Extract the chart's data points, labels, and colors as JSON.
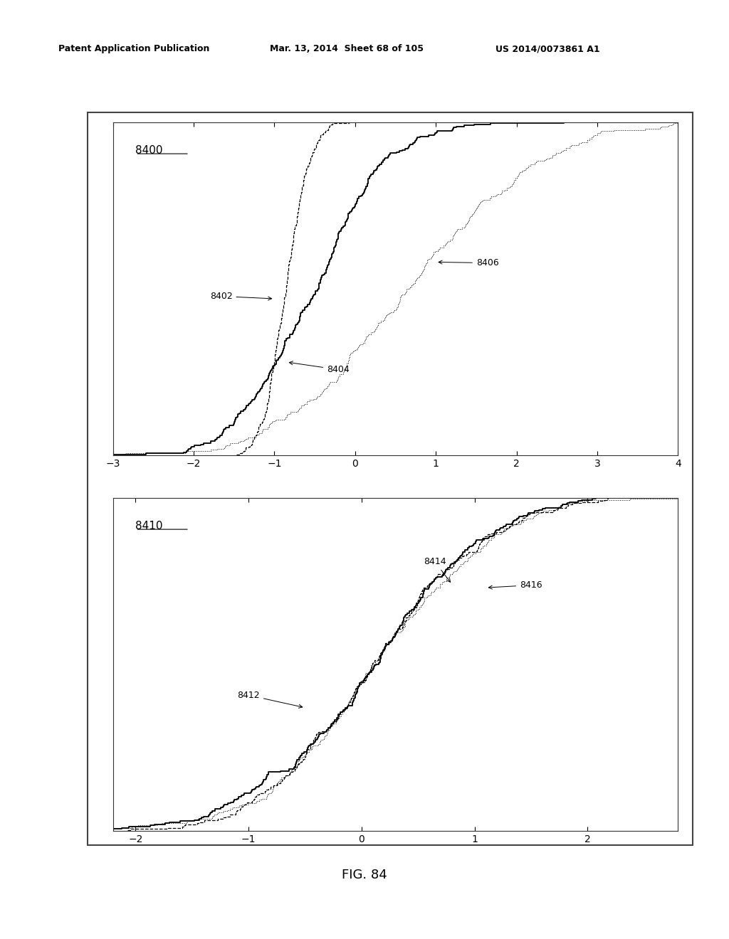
{
  "header_left": "Patent Application Publication",
  "header_mid": "Mar. 13, 2014  Sheet 68 of 105",
  "header_right": "US 2014/0073861 A1",
  "fig_label": "FIG. 84",
  "top_chart": {
    "label": "8400",
    "xlim": [
      -3,
      4
    ],
    "xticks": [
      -3,
      -2,
      -1,
      0,
      1,
      2,
      3,
      4
    ]
  },
  "bottom_chart": {
    "label": "8410",
    "xlim": [
      -2.2,
      2.8
    ],
    "xticks": [
      -2,
      -1,
      0,
      1,
      2
    ]
  },
  "bg_color": "#ffffff",
  "line_color": "#000000"
}
